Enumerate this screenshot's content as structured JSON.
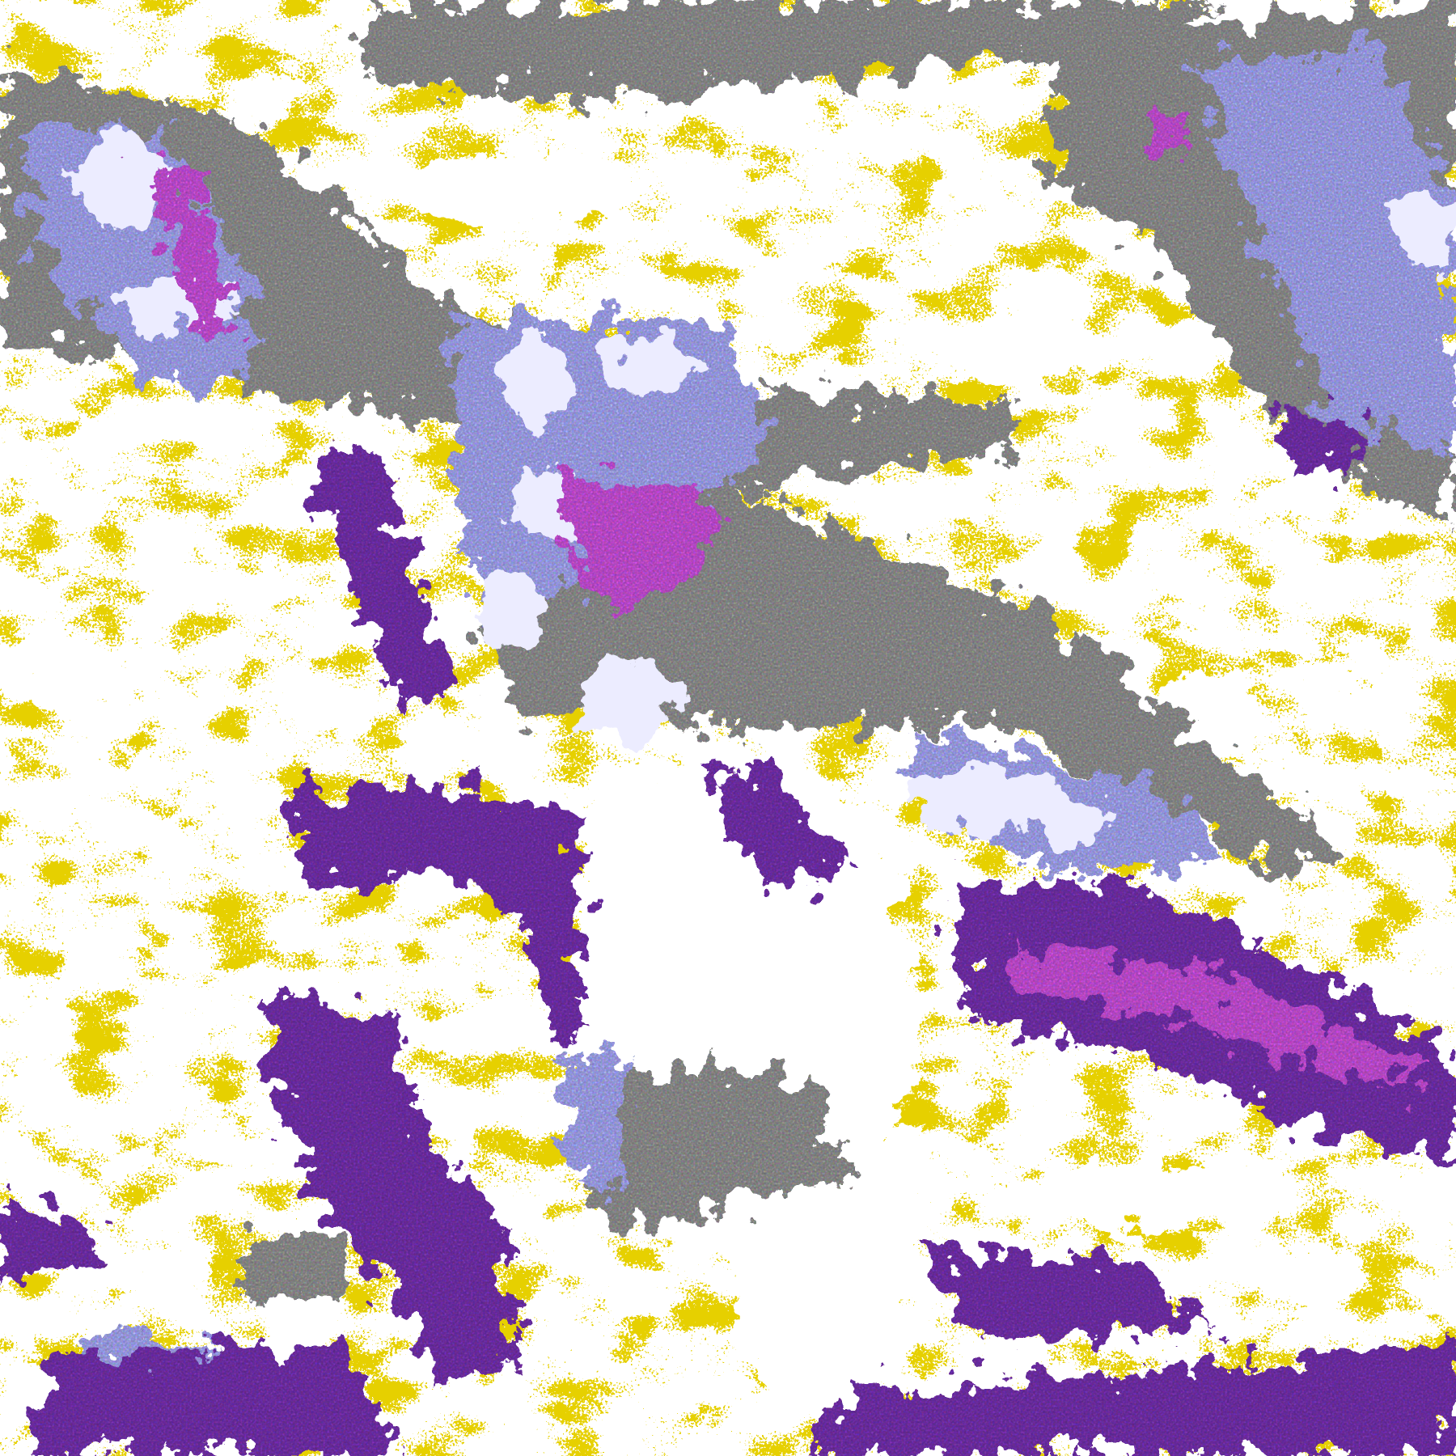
{
  "image": {
    "kind": "satellite cloud-classification composite",
    "legend_shown": false,
    "colors": {
      "clear": "#ffffff",
      "low_cloud": "#c9a000",
      "mid_cloud": "#9a9a9a",
      "high_cloud": "#aeb0ff",
      "deep_convection": "#ececff",
      "thick_high": "#7b35b8",
      "overshoot": "#d455e6"
    }
  }
}
